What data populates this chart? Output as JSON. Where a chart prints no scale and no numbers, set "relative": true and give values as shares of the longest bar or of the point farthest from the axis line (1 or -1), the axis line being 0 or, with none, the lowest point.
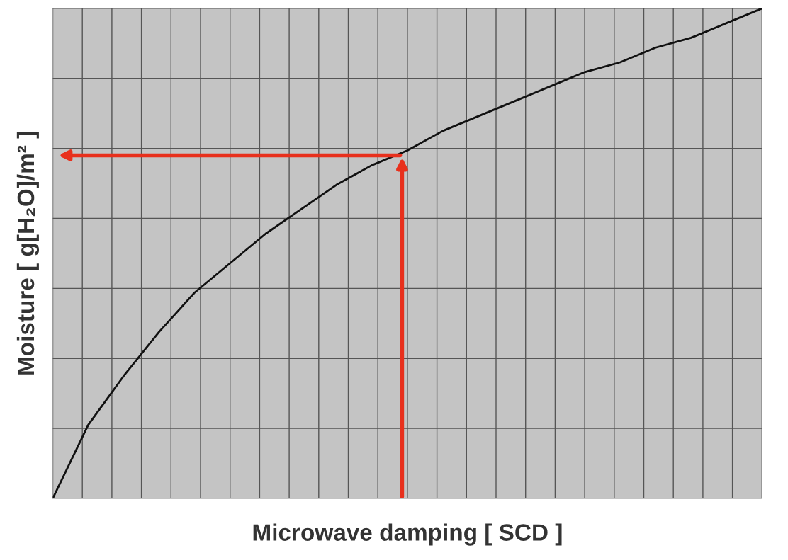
{
  "chart_data": {
    "type": "line",
    "relative": true,
    "xlabel": "Microwave damping [ SCD ]",
    "ylabel": "Moisture [ g[H₂O]/m² ]",
    "categories": [
      null,
      null,
      null,
      null,
      null,
      null,
      null,
      null,
      null,
      null,
      null,
      null,
      null,
      null,
      null,
      null,
      null,
      null,
      null,
      null,
      null
    ],
    "series": [
      {
        "color": "#111111",
        "values": [
          0,
          0.15,
          0.25,
          0.34,
          0.42,
          0.48,
          0.54,
          0.59,
          0.64,
          0.68,
          0.71,
          0.75,
          0.78,
          0.81,
          0.84,
          0.87,
          0.89,
          0.92,
          0.94,
          0.97,
          1.0
        ]
      }
    ],
    "grid": true,
    "marker": "none",
    "line_style": "solid"
  }
}
